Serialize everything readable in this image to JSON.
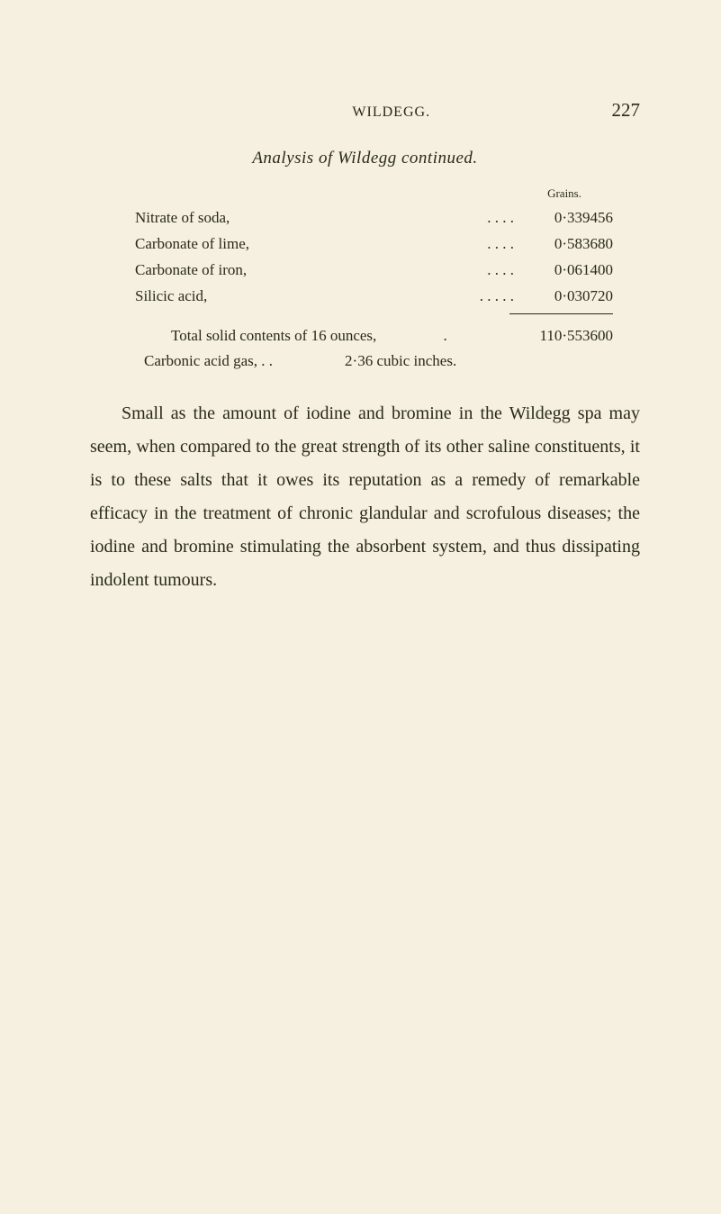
{
  "page": {
    "running_head": "WILDEGG.",
    "page_number": "227",
    "subtitle": "Analysis of Wildegg continued.",
    "grains_label": "Grains.",
    "rows": [
      {
        "label": "Nitrate of soda,",
        "dots": ".         .         .         .",
        "value": "0·339456"
      },
      {
        "label": "Carbonate of lime,",
        "dots": ".         .         .         .",
        "value": "0·583680"
      },
      {
        "label": "Carbonate of iron,",
        "dots": ".         .         .         .",
        "value": "0·061400"
      },
      {
        "label": "Silicic acid,",
        "dots": ".         .         .         .         .",
        "value": "0·030720"
      }
    ],
    "total": {
      "label": "Total solid contents of 16 ounces,",
      "dot": ".",
      "value": "110·553600"
    },
    "carbonic": {
      "label": "Carbonic acid gas,   .         .",
      "value": "2·36 cubic inches."
    },
    "paragraph": "Small as the amount of iodine and bromine in the Wildegg spa may seem, when compared to the great strength of its other saline constituents, it is to these salts that it owes its reputation as a remedy of remarkable efficacy in the treatment of chronic glandular and scrofulous diseases; the iodine and bromine stimulating the absorbent system, and thus dissipating indolent tumours."
  },
  "colors": {
    "background": "#f5f0e0",
    "text": "#2a2a1a"
  },
  "typography": {
    "body_fontsize": 20,
    "table_fontsize": 17,
    "header_fontsize": 16,
    "pagenum_fontsize": 21
  }
}
